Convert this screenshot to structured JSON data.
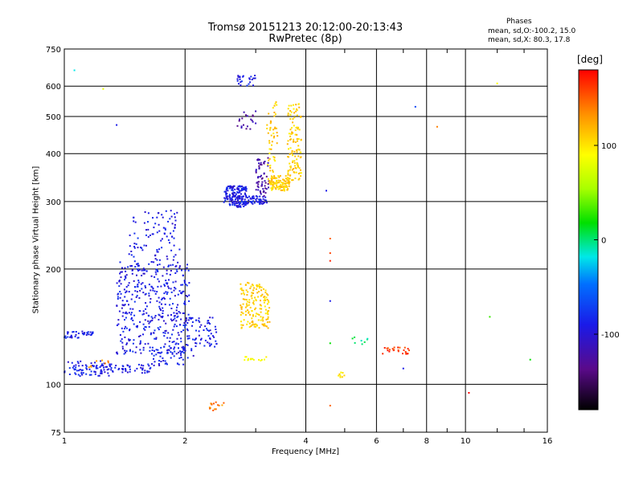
{
  "chart_data": {
    "type": "scatter",
    "title": "Tromsø 20151213 20:12:00-20:13:43",
    "subtitle": "RwPretec (8p)",
    "xlabel": "Frequency [MHz]",
    "ylabel": "Stationary phase Virtual Height [km]",
    "x_scale": "log",
    "y_scale": "log",
    "xlim": [
      1,
      16
    ],
    "ylim": [
      75,
      750
    ],
    "x_ticks": [
      1,
      2,
      4,
      6,
      8,
      10,
      16
    ],
    "x_tick_labels": [
      "1",
      "2",
      "4",
      "6",
      "8",
      "10",
      "16"
    ],
    "y_ticks": [
      75,
      100,
      200,
      300,
      400,
      500,
      600,
      750
    ],
    "y_tick_labels": [
      "75",
      "100",
      "200",
      "300",
      "400",
      "500",
      "600",
      "750"
    ],
    "grid": true,
    "phase_legend": {
      "title": "Phases",
      "o_mode": "mean, sd,O:-100.2, 15.0",
      "x_mode": "mean, sd,X:  80.3, 17.8"
    },
    "colorbar": {
      "label": "[deg]",
      "range": [
        -180,
        180
      ],
      "ticks": [
        100,
        0,
        -100
      ],
      "tick_labels": [
        "100",
        "0",
        "-100"
      ]
    },
    "clusters": [
      {
        "x_range": [
          1.0,
          1.3
        ],
        "y_range": [
          105,
          115
        ],
        "phase": -100,
        "n": 80
      },
      {
        "x_range": [
          1.0,
          1.18
        ],
        "y_range": [
          132,
          138
        ],
        "phase": -100,
        "n": 40
      },
      {
        "x_range": [
          1.15,
          1.35
        ],
        "y_range": [
          110,
          116
        ],
        "phase": 140,
        "n": 8
      },
      {
        "x_range": [
          1.3,
          1.65
        ],
        "y_range": [
          107,
          113
        ],
        "phase": -100,
        "n": 45
      },
      {
        "x_range": [
          1.35,
          2.05
        ],
        "y_range": [
          120,
          210
        ],
        "phase": -100,
        "n": 420
      },
      {
        "x_range": [
          1.45,
          1.95
        ],
        "y_range": [
          210,
          285
        ],
        "phase": -100,
        "n": 90
      },
      {
        "x_range": [
          1.65,
          2.1
        ],
        "y_range": [
          112,
          125
        ],
        "phase": -100,
        "n": 50
      },
      {
        "x_range": [
          2.0,
          2.4
        ],
        "y_range": [
          125,
          150
        ],
        "phase": -100,
        "n": 70
      },
      {
        "x_range": [
          2.5,
          2.85
        ],
        "y_range": [
          290,
          330
        ],
        "phase": -100,
        "n": 160
      },
      {
        "x_range": [
          2.7,
          3.2
        ],
        "y_range": [
          295,
          310
        ],
        "phase": -100,
        "n": 70
      },
      {
        "x_range": [
          3.0,
          3.25
        ],
        "y_range": [
          310,
          390
        ],
        "phase": -130,
        "n": 60
      },
      {
        "x_range": [
          3.25,
          3.65
        ],
        "y_range": [
          320,
          350
        ],
        "phase": 110,
        "n": 100
      },
      {
        "x_range": [
          3.6,
          3.9
        ],
        "y_range": [
          340,
          540
        ],
        "phase": 110,
        "n": 120
      },
      {
        "x_range": [
          3.2,
          3.4
        ],
        "y_range": [
          330,
          560
        ],
        "phase": 110,
        "n": 60
      },
      {
        "x_range": [
          2.7,
          3.0
        ],
        "y_range": [
          460,
          520
        ],
        "phase": -130,
        "n": 20
      },
      {
        "x_range": [
          2.7,
          3.0
        ],
        "y_range": [
          600,
          640
        ],
        "phase": -100,
        "n": 25
      },
      {
        "x_range": [
          2.75,
          3.25
        ],
        "y_range": [
          140,
          185
        ],
        "phase": 110,
        "n": 160
      },
      {
        "x_range": [
          2.3,
          2.5
        ],
        "y_range": [
          85,
          90
        ],
        "phase": 140,
        "n": 15
      },
      {
        "x_range": [
          2.8,
          3.2
        ],
        "y_range": [
          115,
          118
        ],
        "phase": 90,
        "n": 15
      },
      {
        "x_range": [
          6.2,
          7.3
        ],
        "y_range": [
          120,
          125
        ],
        "phase": 160,
        "n": 25
      },
      {
        "x_range": [
          5.2,
          5.8
        ],
        "y_range": [
          127,
          133
        ],
        "phase": 0,
        "n": 8
      },
      {
        "x_range": [
          4.8,
          5.0
        ],
        "y_range": [
          104,
          108
        ],
        "phase": 100,
        "n": 8
      }
    ],
    "points": [
      {
        "x": 1.06,
        "y": 660,
        "phase": -20
      },
      {
        "x": 1.25,
        "y": 590,
        "phase": 80
      },
      {
        "x": 1.35,
        "y": 475,
        "phase": -100
      },
      {
        "x": 4.6,
        "y": 240,
        "phase": 150
      },
      {
        "x": 4.6,
        "y": 220,
        "phase": 160
      },
      {
        "x": 4.6,
        "y": 210,
        "phase": 170
      },
      {
        "x": 4.6,
        "y": 165,
        "phase": -100
      },
      {
        "x": 4.6,
        "y": 128,
        "phase": 20
      },
      {
        "x": 4.6,
        "y": 88,
        "phase": 150
      },
      {
        "x": 7.5,
        "y": 530,
        "phase": -80
      },
      {
        "x": 8.5,
        "y": 470,
        "phase": 140
      },
      {
        "x": 12,
        "y": 610,
        "phase": 90
      },
      {
        "x": 11.5,
        "y": 150,
        "phase": 30
      },
      {
        "x": 14.5,
        "y": 116,
        "phase": 20
      },
      {
        "x": 4.5,
        "y": 320,
        "phase": -100
      },
      {
        "x": 7.0,
        "y": 110,
        "phase": -100
      },
      {
        "x": 10.2,
        "y": 95,
        "phase": 180
      }
    ]
  }
}
